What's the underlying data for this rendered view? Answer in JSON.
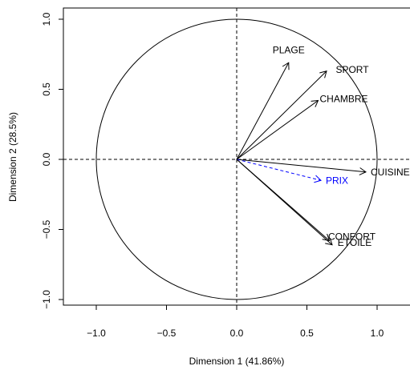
{
  "chart_data": {
    "type": "scatter",
    "subtype": "pca-variables-correlation-circle",
    "title": "",
    "xlabel": "Dimension 1 (41.86%)",
    "ylabel": "Dimension 2 (28.5%)",
    "xlim": [
      -1.0,
      1.0
    ],
    "ylim": [
      -1.0,
      1.0
    ],
    "xticks": [
      {
        "value": -1.0,
        "label": "−1.0"
      },
      {
        "value": -0.5,
        "label": "−0.5"
      },
      {
        "value": 0.0,
        "label": "0.0"
      },
      {
        "value": 0.5,
        "label": "0.5"
      },
      {
        "value": 1.0,
        "label": "1.0"
      }
    ],
    "yticks": [
      {
        "value": -1.0,
        "label": "−1.0"
      },
      {
        "value": -0.5,
        "label": "−0.5"
      },
      {
        "value": 0.0,
        "label": "0.0"
      },
      {
        "value": 0.5,
        "label": "0.5"
      },
      {
        "value": 1.0,
        "label": "1.0"
      }
    ],
    "circle_radius": 1.0,
    "reference_lines": "dashed lines at x=0 and y=0",
    "grid": false,
    "series": [
      {
        "label": "PLAGE",
        "x": 0.37,
        "y": 0.69,
        "color": "#000000",
        "style": "solid"
      },
      {
        "label": "SPORT",
        "x": 0.64,
        "y": 0.63,
        "color": "#000000",
        "style": "solid"
      },
      {
        "label": "CHAMBRE",
        "x": 0.58,
        "y": 0.42,
        "color": "#000000",
        "style": "solid"
      },
      {
        "label": "CUISINE",
        "x": 0.92,
        "y": -0.09,
        "color": "#000000",
        "style": "solid"
      },
      {
        "label": "PRIX",
        "x": 0.6,
        "y": -0.15,
        "color": "#0000ff",
        "style": "dashed"
      },
      {
        "label": "CONFORT",
        "x": 0.66,
        "y": -0.58,
        "color": "#000000",
        "style": "solid"
      },
      {
        "label": "ETOILE",
        "x": 0.68,
        "y": -0.61,
        "color": "#000000",
        "style": "solid"
      }
    ]
  }
}
